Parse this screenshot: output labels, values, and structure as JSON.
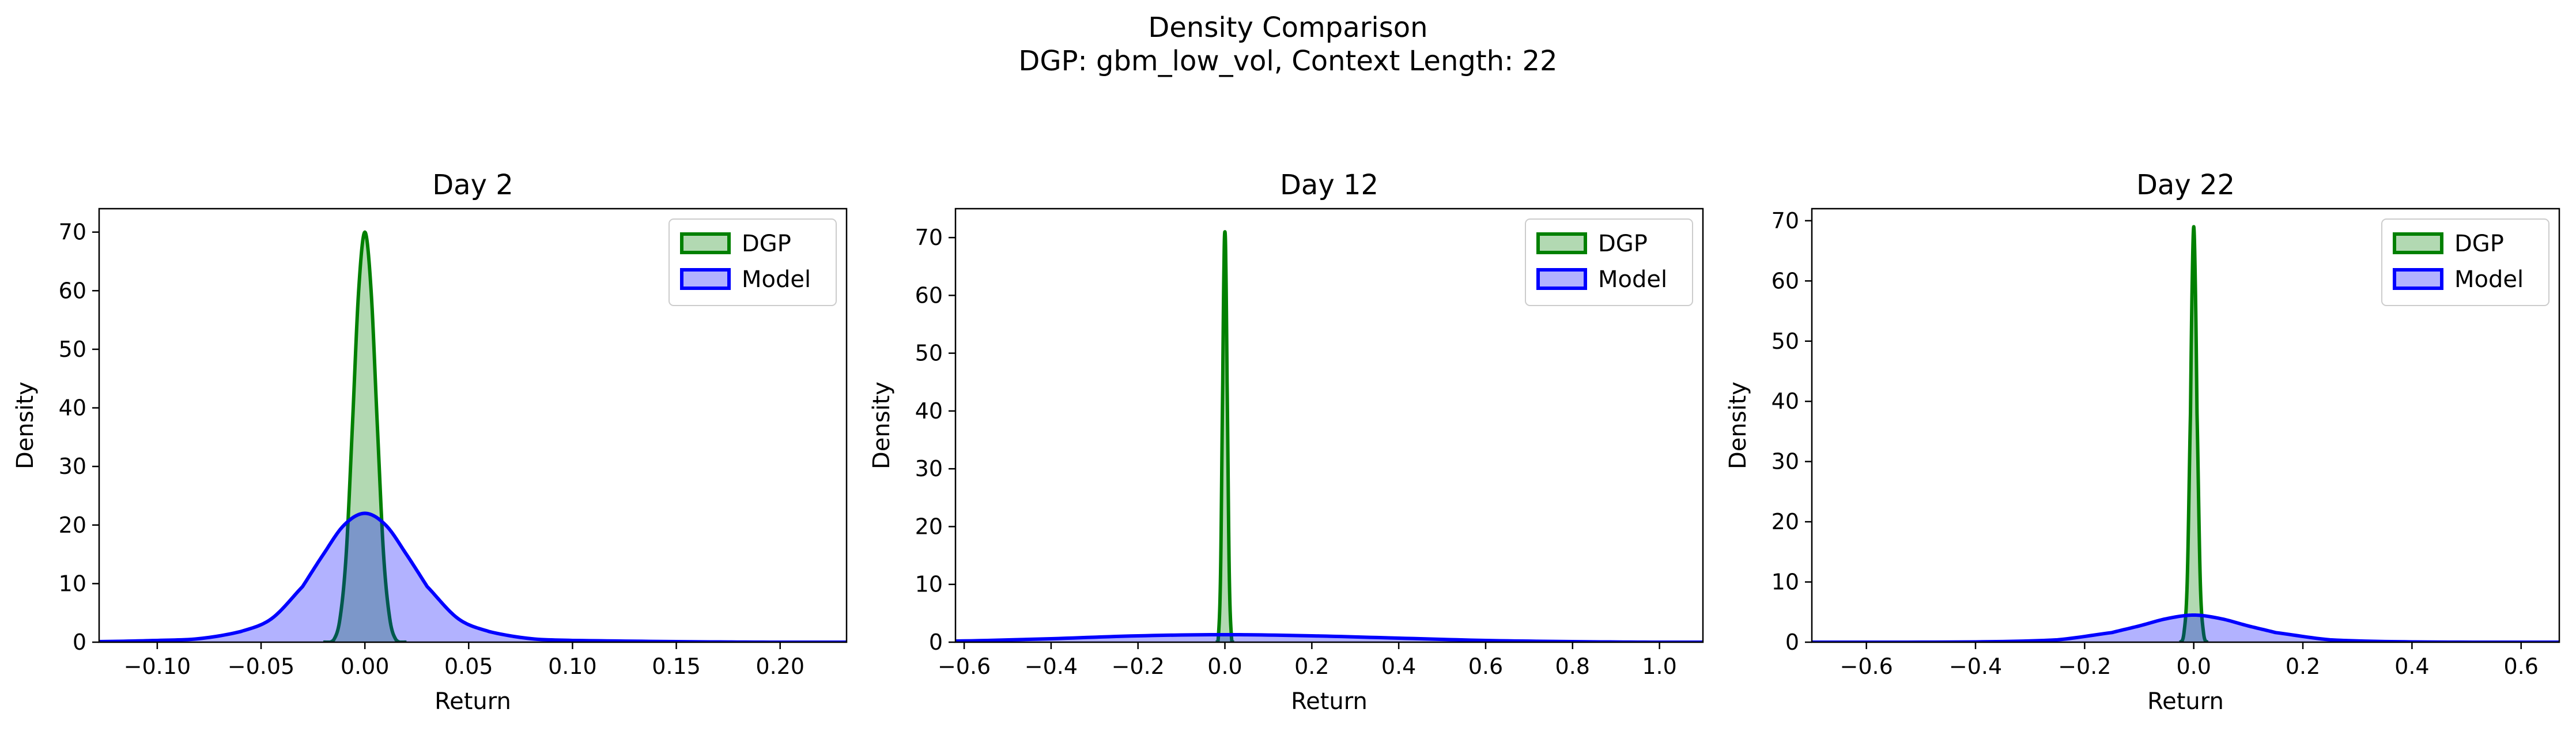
{
  "figure": {
    "title": "Density Comparison",
    "subtitle": "DGP: gbm_low_vol, Context Length: 22"
  },
  "colors": {
    "dgp_line": "#008000",
    "dgp_fill": "#008000",
    "model_line": "#0000ff",
    "model_fill": "#0000ff",
    "axes": "#000000"
  },
  "chart_data": [
    {
      "type": "area",
      "title": "Day 2",
      "xlabel": "Return",
      "ylabel": "Density",
      "xlim": [
        -0.128,
        0.232
      ],
      "ylim": [
        0,
        74
      ],
      "xticks": [
        -0.1,
        -0.05,
        0.0,
        0.05,
        0.1,
        0.15,
        0.2
      ],
      "xtick_labels": [
        "−0.10",
        "−0.05",
        "0.00",
        "0.05",
        "0.10",
        "0.15",
        "0.20"
      ],
      "yticks": [
        0,
        10,
        20,
        30,
        40,
        50,
        60,
        70
      ],
      "ytick_labels": [
        "0",
        "10",
        "20",
        "30",
        "40",
        "50",
        "60",
        "70"
      ],
      "legend_position": "top-right",
      "series": [
        {
          "name": "DGP",
          "color": "#008000",
          "x": [
            -0.02,
            -0.015,
            -0.012,
            -0.009,
            -0.006,
            -0.003,
            0.0,
            0.003,
            0.006,
            0.009,
            0.012,
            0.015,
            0.02
          ],
          "y": [
            0.0,
            0.4,
            4.0,
            15.0,
            37.0,
            60.0,
            70.0,
            60.0,
            37.0,
            15.0,
            4.0,
            0.4,
            0.0
          ]
        },
        {
          "name": "Model",
          "color": "#0000ff",
          "x": [
            -0.128,
            -0.1,
            -0.08,
            -0.06,
            -0.045,
            -0.03,
            -0.02,
            -0.01,
            0.0,
            0.01,
            0.02,
            0.03,
            0.045,
            0.06,
            0.08,
            0.1,
            0.15,
            0.2,
            0.232
          ],
          "y": [
            0.1,
            0.3,
            0.6,
            1.8,
            4.0,
            9.5,
            15.0,
            20.0,
            22.0,
            20.0,
            15.0,
            9.5,
            4.0,
            1.8,
            0.6,
            0.3,
            0.1,
            0.0,
            0.0
          ]
        }
      ]
    },
    {
      "type": "area",
      "title": "Day 12",
      "xlabel": "Return",
      "ylabel": "Density",
      "xlim": [
        -0.62,
        1.1
      ],
      "ylim": [
        0,
        75
      ],
      "xticks": [
        -0.6,
        -0.4,
        -0.2,
        0.0,
        0.2,
        0.4,
        0.6,
        0.8,
        1.0
      ],
      "xtick_labels": [
        "−0.6",
        "−0.4",
        "−0.2",
        "0.0",
        "0.2",
        "0.4",
        "0.6",
        "0.8",
        "1.0"
      ],
      "yticks": [
        0,
        10,
        20,
        30,
        40,
        50,
        60,
        70
      ],
      "ytick_labels": [
        "0",
        "10",
        "20",
        "30",
        "40",
        "50",
        "60",
        "70"
      ],
      "legend_position": "top-right",
      "series": [
        {
          "name": "DGP",
          "color": "#008000",
          "x": [
            -0.02,
            -0.015,
            -0.01,
            -0.005,
            -0.002,
            0.0,
            0.002,
            0.005,
            0.01,
            0.015,
            0.02
          ],
          "y": [
            0.0,
            1.0,
            12.0,
            45.0,
            66.0,
            71.0,
            66.0,
            45.0,
            12.0,
            1.0,
            0.0
          ]
        },
        {
          "name": "Model",
          "color": "#0000ff",
          "x": [
            -0.62,
            -0.4,
            -0.2,
            0.0,
            0.2,
            0.4,
            0.6,
            0.8,
            1.0,
            1.1
          ],
          "y": [
            0.2,
            0.6,
            1.1,
            1.3,
            1.1,
            0.7,
            0.3,
            0.1,
            0.0,
            0.0
          ]
        }
      ]
    },
    {
      "type": "area",
      "title": "Day 22",
      "xlabel": "Return",
      "ylabel": "Density",
      "xlim": [
        -0.7,
        0.67
      ],
      "ylim": [
        0,
        72
      ],
      "xticks": [
        -0.6,
        -0.4,
        -0.2,
        0.0,
        0.2,
        0.4,
        0.6
      ],
      "xtick_labels": [
        "−0.6",
        "−0.4",
        "−0.2",
        "0.0",
        "0.2",
        "0.4",
        "0.6"
      ],
      "yticks": [
        0,
        10,
        20,
        30,
        40,
        50,
        60,
        70
      ],
      "ytick_labels": [
        "0",
        "10",
        "20",
        "30",
        "40",
        "50",
        "60",
        "70"
      ],
      "legend_position": "top-right",
      "series": [
        {
          "name": "DGP",
          "color": "#008000",
          "x": [
            -0.025,
            -0.018,
            -0.012,
            -0.006,
            -0.003,
            0.0,
            0.003,
            0.006,
            0.012,
            0.018,
            0.025
          ],
          "y": [
            0.0,
            1.5,
            10.0,
            38.0,
            59.0,
            69.0,
            59.0,
            38.0,
            10.0,
            1.5,
            0.0
          ]
        },
        {
          "name": "Model",
          "color": "#0000ff",
          "x": [
            -0.7,
            -0.4,
            -0.25,
            -0.15,
            -0.1,
            -0.05,
            0.0,
            0.05,
            0.1,
            0.15,
            0.25,
            0.4,
            0.67
          ],
          "y": [
            0.0,
            0.05,
            0.4,
            1.6,
            2.7,
            3.9,
            4.5,
            3.9,
            2.7,
            1.6,
            0.4,
            0.05,
            0.0
          ]
        }
      ]
    }
  ]
}
